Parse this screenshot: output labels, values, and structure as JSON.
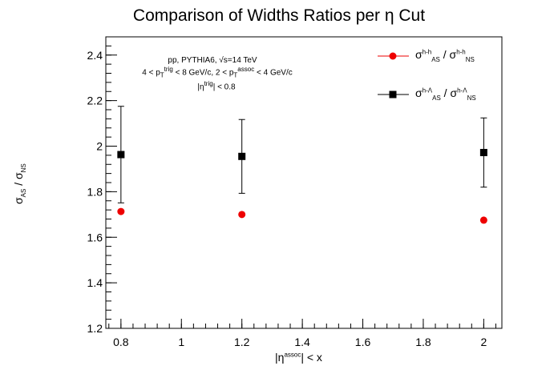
{
  "title": "Comparison of Widths Ratios per η Cut",
  "annotations": {
    "line1": "pp, PYTHIA6, √s=14 TeV",
    "line2": "4 < p_T^trig < 8 GeV/c, 2 < p_T^assoc < 4 GeV/c",
    "line3": "|η^trig| < 0.8"
  },
  "colors": {
    "hh": "#ee0000",
    "hlambda": "#000000"
  },
  "chart_data": {
    "type": "scatter",
    "title": "Comparison of Widths Ratios per η Cut",
    "xlabel": "|η^assoc| < x",
    "ylabel": "σ_AS / σ_NS",
    "xlim": [
      0.75,
      2.06
    ],
    "ylim": [
      1.2,
      2.48
    ],
    "xticks": [
      0.8,
      1,
      1.2,
      1.4,
      1.6,
      1.8,
      2
    ],
    "yticks": [
      1.2,
      1.4,
      1.6,
      1.8,
      2,
      2.2,
      2.4
    ],
    "xtick_labels": [
      "0.8",
      "1",
      "1.2",
      "1.4",
      "1.6",
      "1.8",
      "2"
    ],
    "ytick_labels": [
      "1.2",
      "1.4",
      "1.6",
      "1.8",
      "2",
      "2.2",
      "2.4"
    ],
    "legend_position": "top-right",
    "series": [
      {
        "name": "σ^h-h_AS / σ^h-h_NS",
        "marker": "circle",
        "color": "#ee0000",
        "x": [
          0.8,
          1.2,
          2.0
        ],
        "y": [
          1.713,
          1.7,
          1.675
        ],
        "yerr": [
          0,
          0,
          0
        ]
      },
      {
        "name": "σ^h-Λ_AS / σ^h-Λ_NS",
        "marker": "square",
        "color": "#000000",
        "x": [
          0.8,
          1.2,
          2.0
        ],
        "y": [
          1.963,
          1.955,
          1.972
        ],
        "yerr": [
          0.212,
          0.162,
          0.152
        ]
      }
    ]
  }
}
